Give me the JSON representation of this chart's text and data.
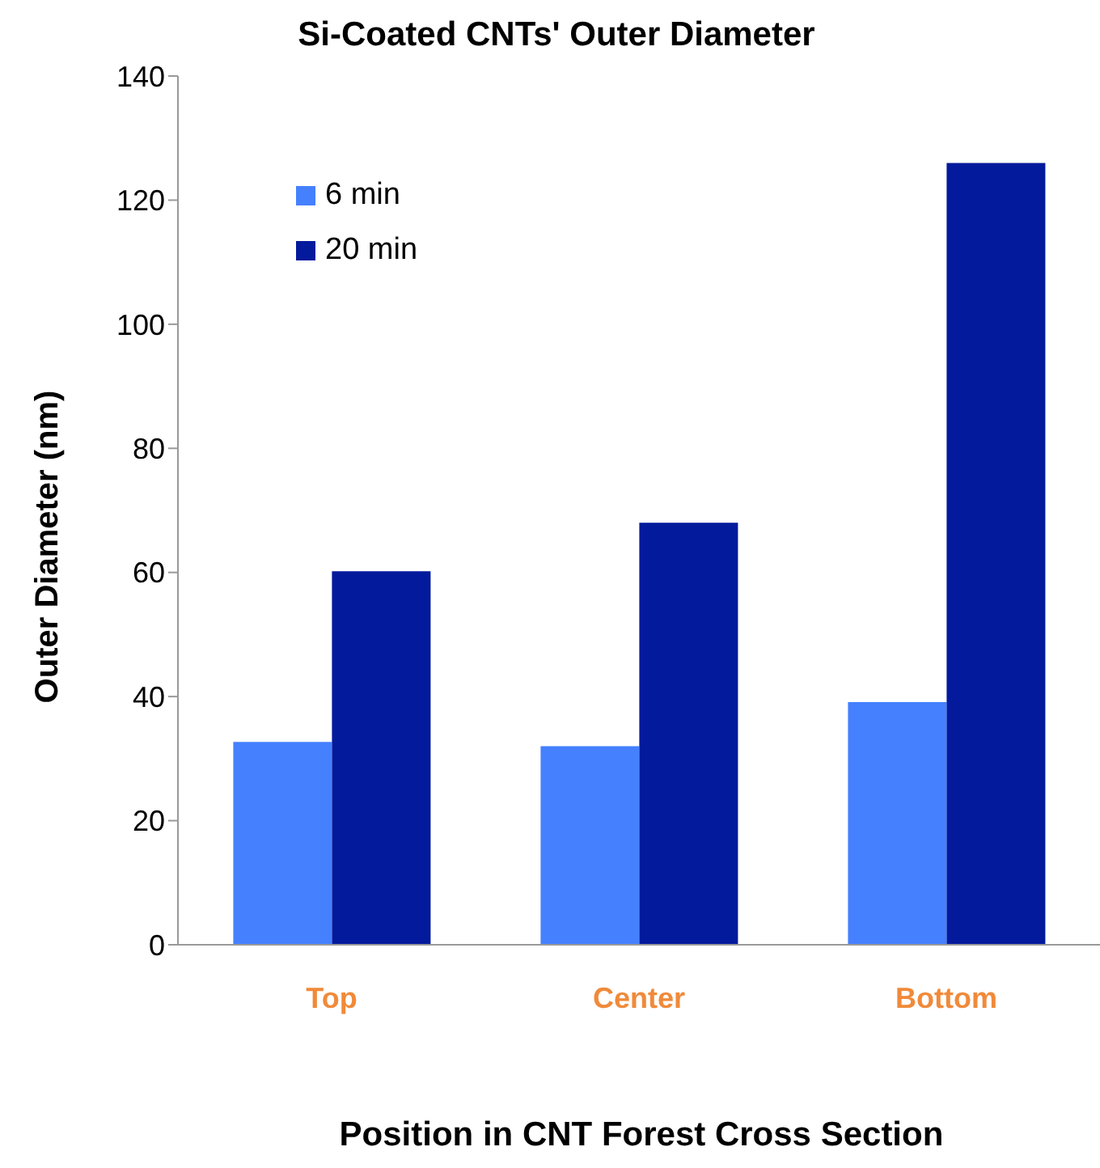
{
  "chart_data": {
    "type": "bar",
    "title": "Si-Coated CNTs' Outer Diameter",
    "xlabel": "Position in CNT Forest Cross Section",
    "ylabel": "Outer Diameter (nm)",
    "categories": [
      "Top",
      "Center",
      "Bottom"
    ],
    "series": [
      {
        "name": "6 min",
        "color": "#4580fe",
        "values": [
          32.7,
          32.0,
          39.1
        ]
      },
      {
        "name": "20 min",
        "color": "#031a9c",
        "values": [
          60.2,
          68.0,
          126.0
        ]
      }
    ],
    "ylim": [
      0,
      140
    ],
    "yticks": [
      0,
      20,
      40,
      60,
      80,
      100,
      120,
      140
    ],
    "legend": "top left",
    "grid": false
  }
}
